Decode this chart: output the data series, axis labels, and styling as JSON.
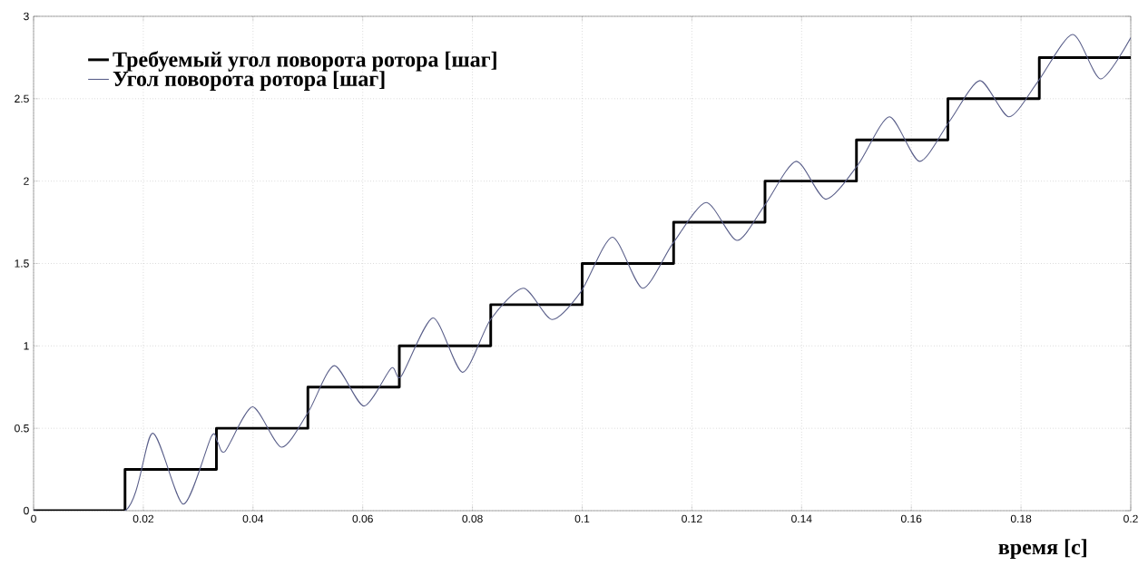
{
  "chart_data": {
    "type": "line",
    "xlabel": "время [с]",
    "xlim": [
      0,
      0.2
    ],
    "xticks": [
      0,
      0.02,
      0.04,
      0.06,
      0.08,
      0.1,
      0.12,
      0.14,
      0.16,
      0.18,
      0.2
    ],
    "ylim": [
      0,
      3
    ],
    "yticks": [
      0,
      0.5,
      1,
      1.5,
      2,
      2.5,
      3
    ],
    "grid": true,
    "legend": "top left",
    "marker": "none",
    "line_style": "solid",
    "series": [
      {
        "name": "Требуемый угол поворота ротора [шаг]",
        "type": "step",
        "color": "#000000",
        "x": [
          0,
          0.01667,
          0.03333,
          0.05,
          0.06667,
          0.08333,
          0.1,
          0.11667,
          0.13333,
          0.15,
          0.16667,
          0.18333,
          0.2
        ],
        "values": [
          0,
          0.25,
          0.5,
          0.75,
          1,
          1.25,
          1.5,
          1.75,
          2,
          2.25,
          2.5,
          2.75,
          2.75
        ]
      },
      {
        "name": "Угол поворота ротора [шаг]",
        "color": "#5a5f8a",
        "x": [
          0,
          0.0167,
          0.0217,
          0.0273,
          0.0324,
          0.0335,
          0.0349,
          0.0399,
          0.0452,
          0.0501,
          0.0548,
          0.0602,
          0.0652,
          0.067,
          0.0728,
          0.0782,
          0.0833,
          0.0893,
          0.0945,
          0.0998,
          0.1055,
          0.111,
          0.1165,
          0.1226,
          0.1282,
          0.1332,
          0.139,
          0.1444,
          0.1503,
          0.156,
          0.1615,
          0.1671,
          0.1725,
          0.1778,
          0.183,
          0.1894,
          0.1945,
          0.2
        ],
        "values": [
          0,
          0,
          0.47,
          0.04,
          0.45,
          0.42,
          0.36,
          0.63,
          0.385,
          0.6,
          0.88,
          0.635,
          0.865,
          0.815,
          1.17,
          0.84,
          1.16,
          1.35,
          1.16,
          1.33,
          1.66,
          1.35,
          1.62,
          1.87,
          1.64,
          1.85,
          2.12,
          1.89,
          2.1,
          2.39,
          2.12,
          2.37,
          2.61,
          2.39,
          2.6,
          2.89,
          2.62,
          2.87
        ]
      }
    ]
  }
}
